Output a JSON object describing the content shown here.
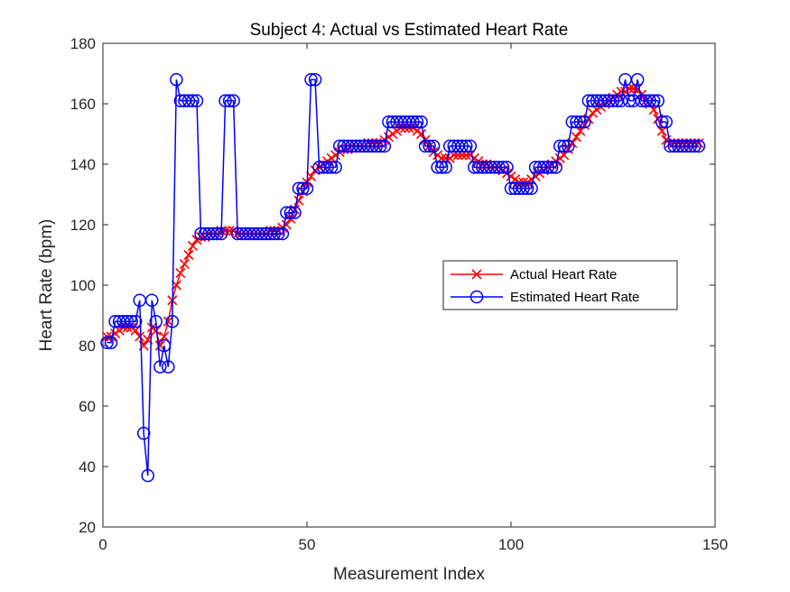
{
  "chart_data": {
    "type": "line",
    "title": "Subject 4: Actual vs Estimated Heart Rate",
    "xlabel": "Measurement Index",
    "ylabel": "Heart Rate (bpm)",
    "xlim": [
      0,
      150
    ],
    "ylim": [
      20,
      180
    ],
    "xticks": [
      0,
      50,
      100,
      150
    ],
    "yticks": [
      20,
      40,
      60,
      80,
      100,
      120,
      140,
      160,
      180
    ],
    "grid": false,
    "legend_position": "center-right",
    "series": [
      {
        "name": "Actual Heart Rate",
        "color": "#ff0000",
        "marker": "x",
        "x": [
          1,
          2,
          3,
          4,
          5,
          6,
          7,
          8,
          9,
          10,
          11,
          12,
          13,
          14,
          15,
          16,
          17,
          18,
          19,
          20,
          21,
          22,
          23,
          24,
          25,
          26,
          27,
          28,
          29,
          30,
          31,
          32,
          33,
          34,
          35,
          36,
          37,
          38,
          39,
          40,
          41,
          42,
          43,
          44,
          45,
          46,
          47,
          48,
          49,
          50,
          51,
          52,
          53,
          54,
          55,
          56,
          57,
          58,
          59,
          60,
          61,
          62,
          63,
          64,
          65,
          66,
          67,
          68,
          69,
          70,
          71,
          72,
          73,
          74,
          75,
          76,
          77,
          78,
          79,
          80,
          81,
          82,
          83,
          84,
          85,
          86,
          87,
          88,
          89,
          90,
          91,
          92,
          93,
          94,
          95,
          96,
          97,
          98,
          99,
          100,
          101,
          102,
          103,
          104,
          105,
          106,
          107,
          108,
          109,
          110,
          111,
          112,
          113,
          114,
          115,
          116,
          117,
          118,
          119,
          120,
          121,
          122,
          123,
          124,
          125,
          126,
          127,
          128,
          129,
          130,
          131,
          132,
          133,
          134,
          135,
          136,
          137,
          138,
          139,
          140,
          141,
          142,
          143,
          144,
          145,
          146
        ],
        "y": [
          83,
          83,
          84,
          85,
          86,
          86,
          86,
          85,
          83,
          80,
          82,
          86,
          85,
          80,
          83,
          88,
          95,
          100,
          104,
          107,
          110,
          113,
          115,
          116,
          116,
          117,
          117,
          117,
          118,
          118,
          118,
          118,
          117,
          117,
          117,
          117,
          117,
          117,
          117,
          117,
          118,
          118,
          118,
          119,
          120,
          122,
          125,
          128,
          131,
          134,
          136,
          138,
          139,
          140,
          141,
          142,
          143,
          144,
          145,
          145,
          146,
          146,
          146,
          146,
          147,
          147,
          147,
          147,
          148,
          149,
          150,
          151,
          152,
          152,
          152,
          152,
          151,
          150,
          148,
          146,
          144,
          143,
          142,
          142,
          142,
          143,
          143,
          143,
          143,
          143,
          142,
          141,
          140,
          140,
          139,
          139,
          139,
          138,
          137,
          136,
          135,
          134,
          134,
          134,
          135,
          136,
          137,
          138,
          139,
          140,
          141,
          142,
          143,
          145,
          147,
          149,
          151,
          153,
          155,
          157,
          158,
          159,
          160,
          161,
          162,
          163,
          164,
          164,
          165,
          165,
          165,
          163,
          161,
          160,
          158,
          155,
          151,
          148,
          147,
          147,
          147,
          147,
          147,
          147,
          147,
          147
        ]
      },
      {
        "name": "Estimated Heart Rate",
        "color": "#0000ff",
        "marker": "o",
        "x": [
          1,
          2,
          3,
          4,
          5,
          6,
          7,
          8,
          9,
          10,
          11,
          12,
          13,
          14,
          15,
          16,
          17,
          18,
          19,
          20,
          21,
          22,
          23,
          24,
          25,
          26,
          27,
          28,
          29,
          30,
          31,
          32,
          33,
          34,
          35,
          36,
          37,
          38,
          39,
          40,
          41,
          42,
          43,
          44,
          45,
          46,
          47,
          48,
          49,
          50,
          51,
          52,
          53,
          54,
          55,
          56,
          57,
          58,
          59,
          60,
          61,
          62,
          63,
          64,
          65,
          66,
          67,
          68,
          69,
          70,
          71,
          72,
          73,
          74,
          75,
          76,
          77,
          78,
          79,
          80,
          81,
          82,
          83,
          84,
          85,
          86,
          87,
          88,
          89,
          90,
          91,
          92,
          93,
          94,
          95,
          96,
          97,
          98,
          99,
          100,
          101,
          102,
          103,
          104,
          105,
          106,
          107,
          108,
          109,
          110,
          111,
          112,
          113,
          114,
          115,
          116,
          117,
          118,
          119,
          120,
          121,
          122,
          123,
          124,
          125,
          126,
          127,
          128,
          129,
          130,
          131,
          132,
          133,
          134,
          135,
          136,
          137,
          138,
          139,
          140,
          141,
          142,
          143,
          144,
          145,
          146
        ],
        "y": [
          81,
          81,
          88,
          88,
          88,
          88,
          88,
          88,
          95,
          51,
          37,
          95,
          88,
          73,
          80,
          73,
          88,
          168,
          161,
          161,
          161,
          161,
          161,
          117,
          117,
          117,
          117,
          117,
          117,
          161,
          161,
          161,
          117,
          117,
          117,
          117,
          117,
          117,
          117,
          117,
          117,
          117,
          117,
          117,
          124,
          124,
          124,
          132,
          132,
          132,
          168,
          168,
          139,
          139,
          139,
          139,
          139,
          146,
          146,
          146,
          146,
          146,
          146,
          146,
          146,
          146,
          146,
          146,
          146,
          154,
          154,
          154,
          154,
          154,
          154,
          154,
          154,
          154,
          146,
          146,
          146,
          139,
          139,
          139,
          146,
          146,
          146,
          146,
          146,
          146,
          139,
          139,
          139,
          139,
          139,
          139,
          139,
          139,
          139,
          132,
          132,
          132,
          132,
          132,
          132,
          139,
          139,
          139,
          139,
          139,
          139,
          146,
          146,
          146,
          154,
          154,
          154,
          154,
          161,
          161,
          161,
          161,
          161,
          161,
          161,
          161,
          161,
          168,
          161,
          161,
          168,
          161,
          161,
          161,
          161,
          161,
          154,
          154,
          146,
          146,
          146,
          146,
          146,
          146,
          146,
          146
        ]
      }
    ]
  }
}
